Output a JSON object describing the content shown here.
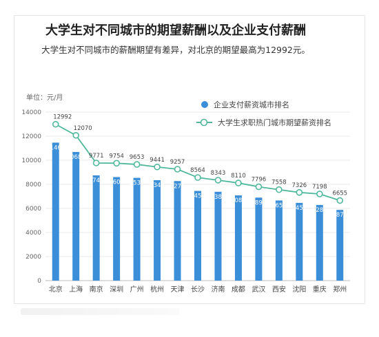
{
  "header": {
    "title": "大学生对不同城市的期望薪酬以及企业支付薪酬",
    "subtitle": "大学生对不同城市的薪酬期望有差异，对北京的期望最高为12992元。"
  },
  "chart_data": {
    "type": "bar",
    "unit_label": "单位：元/月",
    "categories": [
      "北京",
      "上海",
      "南京",
      "深圳",
      "广州",
      "杭州",
      "天津",
      "长沙",
      "济南",
      "成都",
      "武汉",
      "西安",
      "沈阳",
      "重庆",
      "郑州"
    ],
    "series": [
      {
        "name": "企业支付薪资城市排名",
        "type": "bar",
        "values": [
          11463,
          10689,
          8743,
          8602,
          8539,
          8346,
          8271,
          7453,
          7381,
          7080,
          6897,
          6658,
          6457,
          6281,
          5875
        ]
      },
      {
        "name": "大学生求职热门城市期望薪资排名",
        "type": "line",
        "values": [
          12992,
          12070,
          9771,
          9754,
          9653,
          9441,
          9257,
          8564,
          8343,
          8110,
          7796,
          7558,
          7326,
          7198,
          6655
        ]
      }
    ],
    "yticks": [
      0,
      2000,
      4000,
      6000,
      8000,
      10000,
      12000,
      14000
    ],
    "ylim": [
      0,
      14000
    ],
    "grid": true,
    "legend_position": "top-right",
    "colors": {
      "bar": "#3b8fd9",
      "line": "#4fb89c",
      "line_marker_fill": "#ffffff"
    }
  }
}
